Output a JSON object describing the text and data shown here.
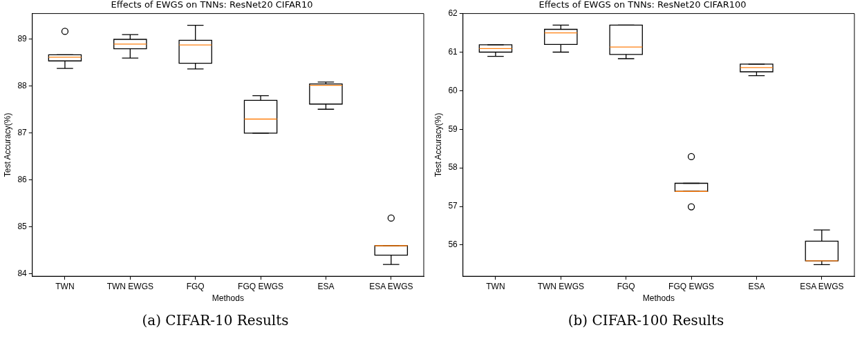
{
  "chart_data": [
    {
      "type": "box",
      "title": "Effects of EWGS on TNNs: ResNet20 CIFAR10",
      "xlabel": "Methods",
      "ylabel": "Test Accuracy(%)",
      "categories": [
        "TWN",
        "TWN EWGS",
        "FGQ",
        "FGQ EWGS",
        "ESA",
        "ESA EWGS"
      ],
      "series": [
        {
          "color": "#000000",
          "boxes": [
            {
              "low": 88.38,
              "q1": 88.54,
              "median": 88.62,
              "q3": 88.67,
              "high": 88.67,
              "outliers": [
                89.17
              ]
            },
            {
              "low": 88.6,
              "q1": 88.8,
              "median": 88.9,
              "q3": 89.0,
              "high": 89.1
            },
            {
              "low": 88.37,
              "q1": 88.49,
              "median": 88.88,
              "q3": 88.98,
              "high": 89.3
            },
            {
              "low": 87.0,
              "q1": 87.0,
              "median": 87.3,
              "q3": 87.7,
              "high": 87.8
            },
            {
              "low": 87.51,
              "q1": 87.62,
              "median": 88.02,
              "q3": 88.05,
              "high": 88.09
            },
            {
              "low": 84.2,
              "q1": 84.4,
              "median": 84.6,
              "q3": 84.6,
              "high": 84.6,
              "outliers": [
                85.19
              ]
            }
          ]
        }
      ],
      "ylim": [
        83.95,
        89.55
      ],
      "yticks": [
        84,
        85,
        86,
        87,
        88,
        89
      ],
      "grid": false,
      "legend": false,
      "annotations": [
        "(a) CIFAR-10 Results"
      ]
    },
    {
      "type": "box",
      "title": "Effects of EWGS on TNNs: ResNet20 CIFAR100",
      "xlabel": "Methods",
      "ylabel": "Test Accuracy(%)",
      "categories": [
        "TWN",
        "TWN EWGS",
        "FGQ",
        "FGQ EWGS",
        "ESA",
        "ESA EWGS"
      ],
      "series": [
        {
          "color": "#000000",
          "boxes": [
            {
              "low": 60.89,
              "q1": 61.0,
              "median": 61.09,
              "q3": 61.19,
              "high": 61.19
            },
            {
              "low": 61.0,
              "q1": 61.2,
              "median": 61.5,
              "q3": 61.59,
              "high": 61.7
            },
            {
              "low": 60.83,
              "q1": 60.94,
              "median": 61.13,
              "q3": 61.7,
              "high": 61.7
            },
            {
              "low": 57.39,
              "q1": 57.39,
              "median": 57.39,
              "q3": 57.6,
              "high": 57.6,
              "outliers": [
                58.29,
                56.99
              ]
            },
            {
              "low": 60.39,
              "q1": 60.49,
              "median": 60.6,
              "q3": 60.69,
              "high": 60.69
            },
            {
              "low": 55.49,
              "q1": 55.59,
              "median": 55.59,
              "q3": 56.1,
              "high": 56.39
            }
          ]
        }
      ],
      "ylim": [
        55.19,
        62.0
      ],
      "yticks": [
        56,
        57,
        58,
        59,
        60,
        61,
        62
      ],
      "grid": false,
      "legend": false,
      "annotations": [
        "(b) CIFAR-100 Results"
      ]
    }
  ]
}
